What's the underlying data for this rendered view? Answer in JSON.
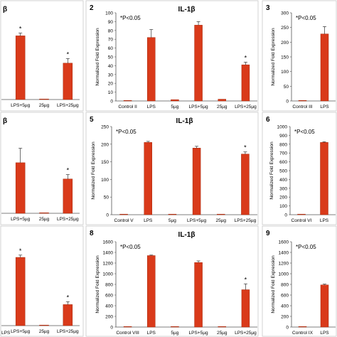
{
  "figure": {
    "bg": "#ffffff",
    "bar_color": "#d93a1a",
    "bar_edge": "#a52a0e"
  },
  "chart_data": [
    {
      "id": "cL1",
      "type": "bar",
      "panel_number": "",
      "title": "β",
      "pvalue": "",
      "ylabel": "",
      "ylim": [
        0,
        100
      ],
      "yticks": [],
      "categories": [
        "LPS+5µg",
        "25µg",
        "LPS+25µg"
      ],
      "values": [
        70,
        0.5,
        40
      ],
      "errors": [
        3,
        0.2,
        5
      ],
      "stars": [
        "*",
        "",
        "*"
      ]
    },
    {
      "id": "c2",
      "type": "bar",
      "panel_number": "2",
      "title": "IL-1β",
      "pvalue": "*P<0.05",
      "ylabel": "Normalized Fold Expression",
      "ylim": [
        0,
        100
      ],
      "yticks": [
        "0",
        "10",
        "20",
        "30",
        "40",
        "50",
        "60",
        "70",
        "80",
        "90",
        "100"
      ],
      "categories": [
        "Control II",
        "LPS",
        "5µg",
        "LPS+5µg",
        "25µg",
        "LPS+25µg"
      ],
      "values": [
        0.5,
        72,
        1.5,
        86,
        2,
        41
      ],
      "errors": [
        0.2,
        9,
        0.5,
        4,
        0.5,
        3
      ],
      "stars": [
        "",
        "",
        "",
        "",
        "",
        "*"
      ]
    },
    {
      "id": "c3",
      "type": "bar",
      "panel_number": "3",
      "title": "",
      "pvalue": "*P<0.05",
      "ylabel": "Normalized Fold Expression",
      "ylim": [
        0,
        300
      ],
      "yticks": [
        "0",
        "50",
        "100",
        "150",
        "200",
        "250",
        "300"
      ],
      "categories": [
        "Control III",
        "LPS"
      ],
      "values": [
        1,
        228
      ],
      "errors": [
        0.5,
        25
      ],
      "stars": [
        "",
        ""
      ]
    },
    {
      "id": "cL2",
      "type": "bar",
      "panel_number": "",
      "title": "β",
      "pvalue": "",
      "ylabel": "",
      "ylim": [
        0,
        250
      ],
      "yticks": [],
      "categories": [
        "LPS+5µg",
        "25µg",
        "LPS+25µg"
      ],
      "values": [
        140,
        0.5,
        95
      ],
      "errors": [
        40,
        0.3,
        12
      ],
      "stars": [
        "",
        "",
        "*"
      ]
    },
    {
      "id": "c5",
      "type": "bar",
      "panel_number": "5",
      "title": "IL-1β",
      "pvalue": "*P<0.05",
      "ylabel": "Normalized Fold Expression",
      "ylim": [
        0,
        250
      ],
      "yticks": [
        "0",
        "50",
        "100",
        "150",
        "200",
        "250"
      ],
      "categories": [
        "Control V",
        "LPS",
        "5µg",
        "LPS+5µg",
        "25µg",
        "LPS+25µg"
      ],
      "values": [
        1,
        205,
        0.5,
        189,
        0.5,
        172
      ],
      "errors": [
        0.3,
        3,
        0.2,
        5,
        0.2,
        6
      ],
      "stars": [
        "",
        "",
        "",
        "",
        "",
        "*"
      ]
    },
    {
      "id": "c6",
      "type": "bar",
      "panel_number": "6",
      "title": "",
      "pvalue": "*P<0.05",
      "ylabel": "Normalized Fold Expression",
      "ylim": [
        0,
        1000
      ],
      "yticks": [
        "0",
        "100",
        "200",
        "300",
        "400",
        "500",
        "600",
        "700",
        "800",
        "900",
        "1000"
      ],
      "categories": [
        "Control VI",
        "LPS"
      ],
      "values": [
        1,
        820
      ],
      "errors": [
        0.5,
        8
      ],
      "stars": [
        "",
        ""
      ]
    },
    {
      "id": "cL3",
      "type": "bar",
      "panel_number": "",
      "title": "",
      "pvalue": "",
      "ylabel": "",
      "ylim": [
        0,
        1600
      ],
      "yticks": [],
      "categories": [
        "LPS+5µg",
        "25µg",
        "LPS+25µg"
      ],
      "values": [
        1200,
        5,
        370
      ],
      "errors": [
        40,
        2,
        50
      ],
      "stars": [
        "*",
        "",
        "*"
      ],
      "left_label": "LPS"
    },
    {
      "id": "c8",
      "type": "bar",
      "panel_number": "8",
      "title": "IL-1β",
      "pvalue": "*P<0.05",
      "ylabel": "Normalized Fold Expression",
      "ylim": [
        0,
        1600
      ],
      "yticks": [
        "0",
        "200",
        "400",
        "600",
        "800",
        "1000",
        "1200",
        "1400",
        "1600"
      ],
      "categories": [
        "Control VIII",
        "LPS",
        "5µg",
        "LPS+5µg",
        "25µg",
        "LPS+25µg"
      ],
      "values": [
        5,
        1340,
        5,
        1210,
        5,
        700
      ],
      "errors": [
        2,
        10,
        2,
        30,
        2,
        110
      ],
      "stars": [
        "",
        "",
        "",
        "",
        "",
        "*"
      ]
    },
    {
      "id": "c9",
      "type": "bar",
      "panel_number": "9",
      "title": "",
      "pvalue": "*P<0.05",
      "ylabel": "Normalized Fold Expression",
      "ylim": [
        0,
        1600
      ],
      "yticks": [
        "0",
        "200",
        "400",
        "600",
        "800",
        "1000",
        "1200",
        "1400",
        "1600"
      ],
      "categories": [
        "Control IX",
        "LPS"
      ],
      "values": [
        5,
        790
      ],
      "errors": [
        2,
        15
      ],
      "stars": [
        "",
        ""
      ]
    }
  ]
}
